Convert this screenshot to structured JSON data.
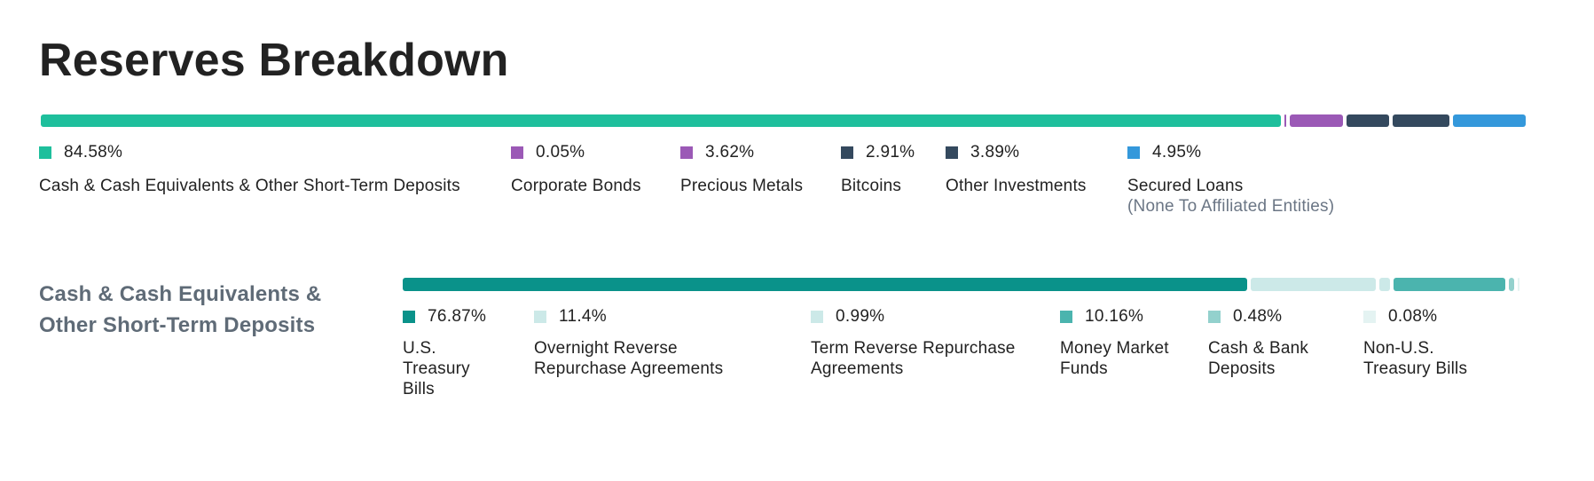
{
  "page": {
    "title": "Reserves Breakdown"
  },
  "chart_data": [
    {
      "type": "stacked-bar",
      "orientation": "horizontal",
      "title": "",
      "unit": "%",
      "segments": [
        {
          "label": "Cash & Cash Equivalents & Other Short-Term Deposits",
          "sublabel": "",
          "value": 84.58,
          "value_label": "84.58%",
          "color": "#1ebf9c"
        },
        {
          "label": "Corporate Bonds",
          "sublabel": "",
          "value": 0.05,
          "value_label": "0.05%",
          "color": "#9b59b6"
        },
        {
          "label": "Precious Metals",
          "sublabel": "",
          "value": 3.62,
          "value_label": "3.62%",
          "color": "#9b59b6"
        },
        {
          "label": "Bitcoins",
          "sublabel": "",
          "value": 2.91,
          "value_label": "2.91%",
          "color": "#34495e"
        },
        {
          "label": "Other Investments",
          "sublabel": "",
          "value": 3.89,
          "value_label": "3.89%",
          "color": "#34495e"
        },
        {
          "label": "Secured Loans",
          "sublabel": "(None To Affiliated Entities)",
          "value": 4.95,
          "value_label": "4.95%",
          "color": "#3498db"
        }
      ]
    },
    {
      "type": "stacked-bar",
      "orientation": "horizontal",
      "title": "Cash & Cash Equivalents & Other Short-Term Deposits",
      "unit": "%",
      "segments": [
        {
          "label": "U.S. Treasury Bills",
          "sublabel": "",
          "value": 76.87,
          "value_label": "76.87%",
          "color": "#0a928a"
        },
        {
          "label": "Overnight Reverse Repurchase Agreements",
          "sublabel": "",
          "value": 11.4,
          "value_label": "11.4%",
          "color": "#cce9e8"
        },
        {
          "label": "Term Reverse Repurchase Agreements",
          "sublabel": "",
          "value": 0.99,
          "value_label": "0.99%",
          "color": "#cce9e8"
        },
        {
          "label": "Money Market Funds",
          "sublabel": "",
          "value": 10.16,
          "value_label": "10.16%",
          "color": "#4bb4ae"
        },
        {
          "label": "Cash & Bank Deposits",
          "sublabel": "",
          "value": 0.48,
          "value_label": "0.48%",
          "color": "#93d1cd"
        },
        {
          "label": "Non-U.S. Treasury Bills",
          "sublabel": "",
          "value": 0.08,
          "value_label": "0.08%",
          "color": "#e4f3f2"
        }
      ]
    }
  ]
}
